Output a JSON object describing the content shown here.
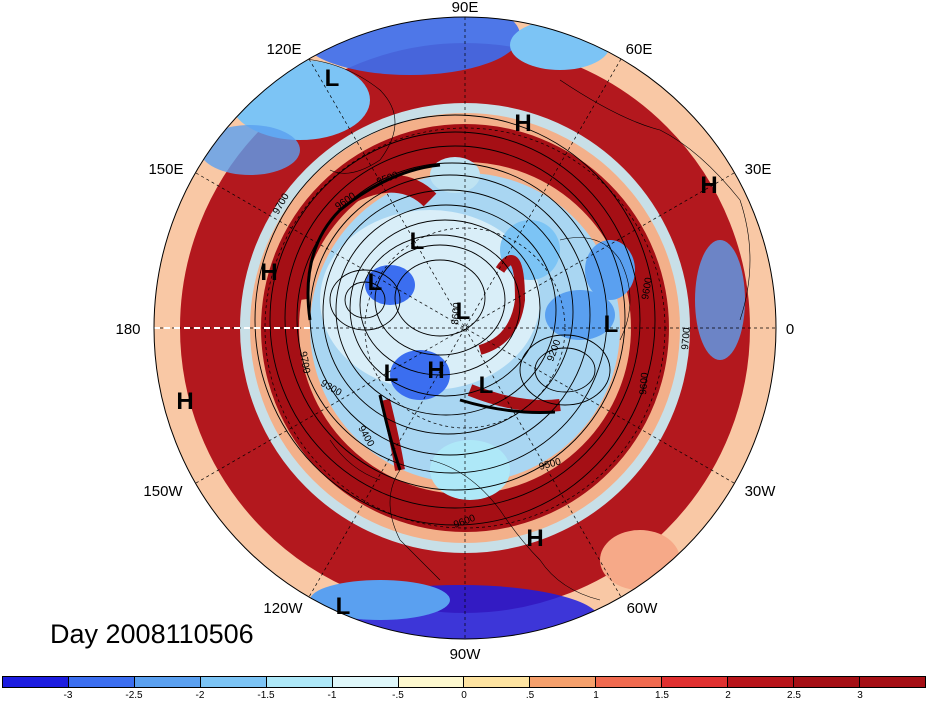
{
  "map": {
    "projection": "north-polar-stereographic",
    "longitude_labels": {
      "lon_90e": "90E",
      "lon_60e": "60E",
      "lon_120e": "120E",
      "lon_150e": "150E",
      "lon_30e": "30E",
      "lon_180": "180",
      "lon_0": "0",
      "lon_150w": "150W",
      "lon_30w": "30W",
      "lon_120w": "120W",
      "lon_60w": "60W",
      "lon_90w": "90W"
    },
    "pressure_centers": [
      {
        "label": "L",
        "id": "l1"
      },
      {
        "label": "H",
        "id": "h1"
      },
      {
        "label": "H",
        "id": "h2"
      },
      {
        "label": "L",
        "id": "l2"
      },
      {
        "label": "H",
        "id": "h3"
      },
      {
        "label": "L",
        "id": "l3"
      },
      {
        "label": "L",
        "id": "l4"
      },
      {
        "label": "L",
        "id": "l5"
      },
      {
        "label": "L",
        "id": "l6"
      },
      {
        "label": "H",
        "id": "h4"
      },
      {
        "label": "L",
        "id": "l7"
      },
      {
        "label": "H",
        "id": "h5"
      },
      {
        "label": "H",
        "id": "h6"
      },
      {
        "label": "L",
        "id": "l8"
      }
    ],
    "contour_labels": [
      "9700",
      "9600",
      "9500",
      "9200",
      "9300",
      "9400",
      "9500",
      "9600",
      "9600",
      "9700",
      "9600",
      "8600",
      "9700"
    ],
    "fill_colors": {
      "strong_positive": "#a50f15",
      "strong_negative": "#1c1ce0"
    }
  },
  "title": {
    "day": "Day 2008110506"
  },
  "colorbar": {
    "colors": [
      "#1c1ce0",
      "#3b6ef0",
      "#5aa0f0",
      "#7cc4f5",
      "#aee8f8",
      "#dff7fa",
      "#fdf8cf",
      "#fde3a1",
      "#f5a06c",
      "#f06a4f",
      "#e03030",
      "#b8141a",
      "#a50f15"
    ],
    "tick_labels": [
      "-3",
      "-2.5",
      "-2",
      "-1.5",
      "-1",
      "-.5",
      "0",
      ".5",
      "1",
      "1.5",
      "2",
      "2.5",
      "3"
    ]
  }
}
